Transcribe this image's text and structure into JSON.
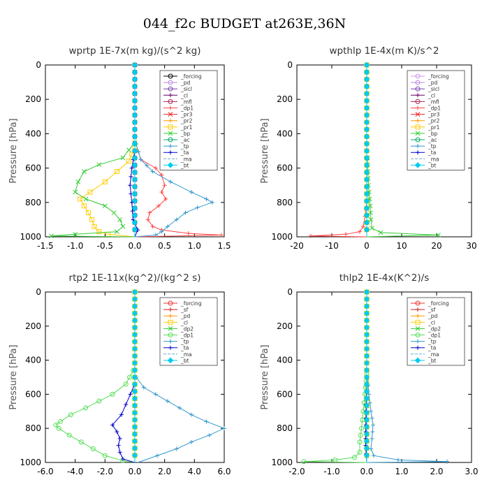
{
  "title": "044_f2c  BUDGET at263E,36N",
  "chart_data": [
    {
      "type": "line",
      "title": "wprtp   1E-7x(m kg)/(s^2 kg)",
      "ylabel": "Pressure [hPa]",
      "xlim": [
        -1.5,
        1.5
      ],
      "ylim": [
        1000,
        0
      ],
      "xticks": [
        -1.5,
        -1.0,
        -0.5,
        0.0,
        0.5,
        1.0,
        1.5
      ],
      "xtick_labels": [
        "-1.5",
        "-1.0",
        "-0.5",
        "0.0",
        "0.5",
        "1.0",
        "1.5"
      ],
      "yticks": [
        0,
        200,
        400,
        600,
        800,
        1000
      ],
      "ytick_labels": [
        "0",
        "200",
        "400",
        "600",
        "800",
        "1000"
      ],
      "legend_position": "top-right",
      "series": [
        {
          "name": "_forcing",
          "color": "#000000",
          "marker": "circle",
          "p": [
            0,
            500,
            1000
          ],
          "values": [
            0,
            0,
            0
          ]
        },
        {
          "name": "_pd",
          "color": "#bb88dd",
          "marker": "circle",
          "p": [
            0,
            500,
            1000
          ],
          "values": [
            0,
            0,
            0
          ]
        },
        {
          "name": "_sicl",
          "color": "#7744aa",
          "marker": "circle",
          "p": [
            0,
            500,
            1000
          ],
          "values": [
            0,
            0,
            0
          ]
        },
        {
          "name": "_cl",
          "color": "#660066",
          "marker": "plus",
          "p": [
            0,
            500,
            1000
          ],
          "values": [
            0,
            0,
            0
          ]
        },
        {
          "name": "_mfl",
          "color": "#aa2255",
          "marker": "circle",
          "p": [
            0,
            500,
            1000
          ],
          "values": [
            0,
            0,
            0
          ]
        },
        {
          "name": "_dp1",
          "color": "#ff4444",
          "marker": "plus",
          "p": [
            460,
            550,
            600,
            640,
            700,
            740,
            780,
            820,
            860,
            900,
            940,
            960,
            980,
            990,
            1000
          ],
          "values": [
            0.02,
            0.1,
            0.35,
            0.45,
            0.5,
            0.45,
            0.52,
            0.4,
            0.25,
            0.22,
            0.3,
            0.45,
            0.9,
            1.45,
            0.0
          ]
        },
        {
          "name": "_pr3",
          "color": "#ee2222",
          "marker": "x",
          "p": [
            0,
            500,
            1000
          ],
          "values": [
            0,
            0,
            0
          ]
        },
        {
          "name": "_pr2",
          "color": "#ff9900",
          "marker": "plus",
          "p": [
            0,
            500,
            1000
          ],
          "values": [
            0,
            0,
            0
          ]
        },
        {
          "name": "_pr1",
          "color": "#ffcc00",
          "marker": "square",
          "p": [
            480,
            560,
            620,
            680,
            740,
            780,
            820,
            860,
            900,
            940,
            970,
            985,
            1000
          ],
          "values": [
            0,
            -0.1,
            -0.3,
            -0.5,
            -0.75,
            -0.92,
            -0.85,
            -0.78,
            -0.72,
            -0.68,
            -0.6,
            -0.45,
            0
          ]
        },
        {
          "name": "_bp",
          "color": "#33cc33",
          "marker": "x",
          "p": [
            450,
            540,
            580,
            620,
            680,
            740,
            780,
            820,
            860,
            900,
            940,
            970,
            985,
            995,
            1000
          ],
          "values": [
            0,
            -0.2,
            -0.6,
            -0.85,
            -0.95,
            -1.0,
            -0.82,
            -0.5,
            -0.35,
            -0.25,
            -0.2,
            -0.3,
            -1.0,
            -1.4,
            0
          ]
        },
        {
          "name": "_ac",
          "color": "#00aa66",
          "marker": "circle",
          "p": [
            0,
            500,
            1000
          ],
          "values": [
            0,
            0,
            0
          ]
        },
        {
          "name": "_tp",
          "color": "#3399cc",
          "marker": "plus",
          "p": [
            460,
            550,
            620,
            680,
            740,
            780,
            800,
            830,
            860,
            900,
            940,
            970,
            990,
            1000
          ],
          "values": [
            0.02,
            0.1,
            0.3,
            0.6,
            0.95,
            1.2,
            1.3,
            1.05,
            0.85,
            0.7,
            0.55,
            0.45,
            0.35,
            0
          ]
        },
        {
          "name": "_ta",
          "color": "#0000cc",
          "marker": "plus",
          "p": [
            500,
            600,
            700,
            800,
            900,
            960,
            1000
          ],
          "values": [
            0,
            -0.05,
            -0.08,
            -0.05,
            -0.03,
            0.05,
            0
          ]
        },
        {
          "name": "_ma",
          "color": "#66aacc",
          "marker": "none",
          "p": [
            0,
            500,
            1000
          ],
          "values": [
            0,
            0,
            0
          ]
        },
        {
          "name": "_bt",
          "color": "#00ccee",
          "marker": "diamond",
          "p": [
            0,
            500,
            1000
          ],
          "values": [
            0,
            0,
            0
          ]
        }
      ]
    },
    {
      "type": "line",
      "title": "wpthlp   1E-4x(m K)/s^2",
      "ylabel": "Pressure [hPa]",
      "xlim": [
        -20,
        30
      ],
      "ylim": [
        1000,
        0
      ],
      "xticks": [
        -20,
        -10,
        0,
        10,
        20,
        30
      ],
      "xtick_labels": [
        "-20",
        "-10",
        "0",
        "10",
        "20",
        "30"
      ],
      "yticks": [
        0,
        200,
        400,
        600,
        800,
        1000
      ],
      "ytick_labels": [
        "0",
        "200",
        "400",
        "600",
        "800",
        "1000"
      ],
      "legend_position": "top-right",
      "series": [
        {
          "name": "_forcing",
          "color": "#cc99ee",
          "marker": "circle",
          "p": [
            0,
            500,
            1000
          ],
          "values": [
            0,
            0,
            0
          ]
        },
        {
          "name": "_pd",
          "color": "#bb88dd",
          "marker": "circle",
          "p": [
            0,
            500,
            1000
          ],
          "values": [
            0,
            0,
            0
          ]
        },
        {
          "name": "_sicl",
          "color": "#7744aa",
          "marker": "circle",
          "p": [
            0,
            500,
            1000
          ],
          "values": [
            0,
            0,
            0
          ]
        },
        {
          "name": "_cl",
          "color": "#660066",
          "marker": "plus",
          "p": [
            0,
            500,
            1000
          ],
          "values": [
            0,
            0,
            0
          ]
        },
        {
          "name": "_mfl",
          "color": "#aa2255",
          "marker": "circle",
          "p": [
            0,
            500,
            1000
          ],
          "values": [
            0,
            0,
            0
          ]
        },
        {
          "name": "_dp1",
          "color": "#ff4444",
          "marker": "plus",
          "p": [
            800,
            880,
            940,
            970,
            985,
            995,
            1000
          ],
          "values": [
            0,
            -0.5,
            -1.0,
            -2.0,
            -6.0,
            -16.0,
            0
          ]
        },
        {
          "name": "_pr3",
          "color": "#ee2222",
          "marker": "x",
          "p": [
            0,
            500,
            1000
          ],
          "values": [
            0,
            0,
            0
          ]
        },
        {
          "name": "_pr2",
          "color": "#ff9900",
          "marker": "plus",
          "p": [
            0,
            500,
            1000
          ],
          "values": [
            0,
            0,
            0
          ]
        },
        {
          "name": "_pr1",
          "color": "#ffcc00",
          "marker": "square",
          "p": [
            0,
            500,
            1000
          ],
          "values": [
            0,
            0,
            0
          ]
        },
        {
          "name": "_bp",
          "color": "#33cc33",
          "marker": "x",
          "p": [
            540,
            700,
            820,
            900,
            950,
            975,
            990,
            1000
          ],
          "values": [
            0.2,
            0.5,
            1.0,
            1.2,
            1.5,
            4.0,
            20.5,
            0
          ]
        },
        {
          "name": "_ac",
          "color": "#00aa66",
          "marker": "circle",
          "p": [
            0,
            500,
            1000
          ],
          "values": [
            0,
            0,
            0
          ]
        },
        {
          "name": "_tp",
          "color": "#3399cc",
          "marker": "plus",
          "p": [
            0,
            500,
            1000
          ],
          "values": [
            0,
            0,
            0
          ]
        },
        {
          "name": "_ta",
          "color": "#0000cc",
          "marker": "plus",
          "p": [
            0,
            500,
            1000
          ],
          "values": [
            0,
            0,
            0
          ]
        },
        {
          "name": "_ma",
          "color": "#66aacc",
          "marker": "none",
          "p": [
            0,
            500,
            1000
          ],
          "values": [
            0,
            0,
            0
          ]
        },
        {
          "name": "_bt",
          "color": "#00ccee",
          "marker": "diamond",
          "p": [
            0,
            500,
            1000
          ],
          "values": [
            0,
            0,
            0
          ]
        }
      ]
    },
    {
      "type": "line",
      "title": "rtp2   1E-11x(kg^2)/(kg^2 s)",
      "ylabel": "Pressure [hPa]",
      "xlim": [
        -6.0,
        6.0
      ],
      "ylim": [
        1000,
        0
      ],
      "xticks": [
        -6,
        -4,
        -2,
        0,
        2,
        4,
        6
      ],
      "xtick_labels": [
        "-6.0",
        "-4.0",
        "-2.0",
        "0.0",
        "2.0",
        "4.0",
        "6.0"
      ],
      "yticks": [
        0,
        200,
        400,
        600,
        800,
        1000
      ],
      "ytick_labels": [
        "0",
        "200",
        "400",
        "600",
        "800",
        "1000"
      ],
      "legend_position": "top-right",
      "series": [
        {
          "name": "_forcing",
          "color": "#ee3333",
          "marker": "circle",
          "p": [
            0,
            500,
            1000
          ],
          "values": [
            0,
            0,
            0
          ]
        },
        {
          "name": "_sf",
          "color": "#cc2222",
          "marker": "plus",
          "p": [
            0,
            500,
            1000
          ],
          "values": [
            0,
            0,
            0
          ]
        },
        {
          "name": "_pd",
          "color": "#ff9900",
          "marker": "plus",
          "p": [
            0,
            500,
            1000
          ],
          "values": [
            0,
            0,
            0
          ]
        },
        {
          "name": "_cl",
          "color": "#ffcc00",
          "marker": "square",
          "p": [
            0,
            500,
            1000
          ],
          "values": [
            0,
            0,
            0
          ]
        },
        {
          "name": "_dp2",
          "color": "#33cc33",
          "marker": "x",
          "p": [
            0,
            500,
            1000
          ],
          "values": [
            0,
            0,
            0
          ]
        },
        {
          "name": "_dp1",
          "color": "#55dd55",
          "marker": "circle",
          "p": [
            460,
            540,
            600,
            640,
            680,
            720,
            760,
            780,
            800,
            840,
            880,
            920,
            960,
            990,
            1000
          ],
          "values": [
            -0.1,
            -0.6,
            -1.5,
            -2.4,
            -3.3,
            -4.3,
            -5.0,
            -5.3,
            -5.1,
            -4.4,
            -3.6,
            -2.8,
            -2.0,
            -0.8,
            0
          ]
        },
        {
          "name": "_tp",
          "color": "#3399cc",
          "marker": "plus",
          "p": [
            500,
            560,
            600,
            640,
            680,
            720,
            760,
            800,
            840,
            880,
            920,
            960,
            1000
          ],
          "values": [
            0.1,
            0.6,
            1.4,
            2.2,
            3.0,
            3.8,
            4.8,
            6.0,
            5.0,
            3.8,
            2.8,
            1.5,
            0.2
          ]
        },
        {
          "name": "_ta",
          "color": "#0000cc",
          "marker": "plus",
          "p": [
            540,
            600,
            660,
            720,
            780,
            820,
            860,
            900,
            940,
            980,
            1000
          ],
          "values": [
            0.0,
            -0.3,
            -0.6,
            -0.9,
            -1.5,
            -1.2,
            -1.0,
            -1.1,
            -1.0,
            -0.8,
            0
          ]
        },
        {
          "name": "_ma",
          "color": "#66aacc",
          "marker": "none",
          "p": [
            0,
            500,
            1000
          ],
          "values": [
            0,
            0,
            0
          ]
        },
        {
          "name": "_bt",
          "color": "#00ccee",
          "marker": "diamond",
          "p": [
            0,
            500,
            1000
          ],
          "values": [
            0,
            0,
            0
          ]
        }
      ]
    },
    {
      "type": "line",
      "title": "thlp2   1E-4x(K^2)/s",
      "ylabel": "Pressure [hPa]",
      "xlim": [
        -2.0,
        3.0
      ],
      "ylim": [
        1000,
        0
      ],
      "xticks": [
        -2,
        -1,
        0,
        1,
        2,
        3
      ],
      "xtick_labels": [
        "-2.0",
        "-1.0",
        "0.0",
        "1.0",
        "2.0",
        "3.0"
      ],
      "yticks": [
        0,
        200,
        400,
        600,
        800,
        1000
      ],
      "ytick_labels": [
        "0",
        "200",
        "400",
        "600",
        "800",
        "1000"
      ],
      "legend_position": "top-right",
      "series": [
        {
          "name": "_forcing",
          "color": "#ee3333",
          "marker": "circle",
          "p": [
            0,
            500,
            1000
          ],
          "values": [
            0,
            0,
            0
          ]
        },
        {
          "name": "_sf",
          "color": "#cc2222",
          "marker": "plus",
          "p": [
            0,
            500,
            1000
          ],
          "values": [
            0,
            0,
            0
          ]
        },
        {
          "name": "_pd",
          "color": "#ff9900",
          "marker": "plus",
          "p": [
            0,
            500,
            1000
          ],
          "values": [
            0,
            0,
            0
          ]
        },
        {
          "name": "_cl",
          "color": "#ffcc00",
          "marker": "square",
          "p": [
            0,
            500,
            1000
          ],
          "values": [
            0,
            0,
            0
          ]
        },
        {
          "name": "_dp2",
          "color": "#33cc33",
          "marker": "x",
          "p": [
            0,
            500,
            1000
          ],
          "values": [
            0,
            0,
            0
          ]
        },
        {
          "name": "_dp1",
          "color": "#55dd55",
          "marker": "circle",
          "p": [
            480,
            600,
            700,
            800,
            880,
            940,
            970,
            985,
            995,
            1000
          ],
          "values": [
            0,
            -0.05,
            -0.1,
            -0.15,
            -0.2,
            -0.2,
            -0.35,
            -0.9,
            -1.8,
            0
          ]
        },
        {
          "name": "_tp",
          "color": "#3399cc",
          "marker": "plus",
          "p": [
            500,
            600,
            700,
            780,
            860,
            920,
            960,
            985,
            995,
            1000
          ],
          "values": [
            0.02,
            0.06,
            0.12,
            0.18,
            0.15,
            0.12,
            0.2,
            0.9,
            2.3,
            0
          ]
        },
        {
          "name": "_ta",
          "color": "#0000cc",
          "marker": "plus",
          "p": [
            500,
            700,
            900,
            1000
          ],
          "values": [
            0,
            -0.02,
            -0.03,
            0
          ]
        },
        {
          "name": "_ma",
          "color": "#66aacc",
          "marker": "none",
          "p": [
            0,
            500,
            1000
          ],
          "values": [
            0,
            0,
            0
          ]
        },
        {
          "name": "_bt",
          "color": "#00ccee",
          "marker": "diamond",
          "p": [
            0,
            500,
            1000
          ],
          "values": [
            0,
            0,
            0
          ]
        }
      ]
    }
  ]
}
